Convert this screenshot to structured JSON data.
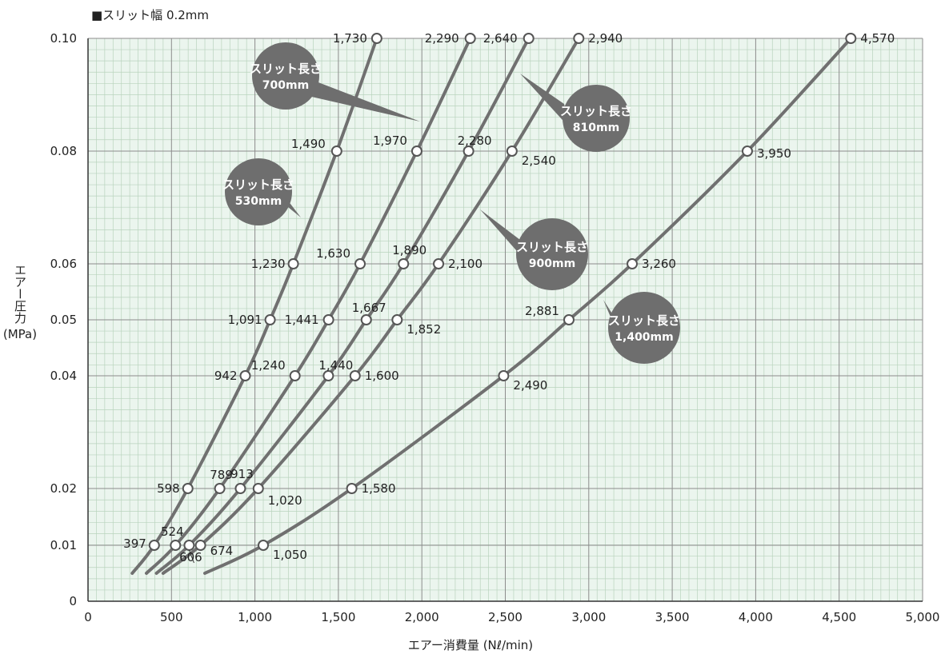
{
  "chart_data": {
    "type": "line",
    "title": "■スリット幅 0.2mm",
    "xlabel": "エアー消費量 (Nℓ/min)",
    "ylabel": "エアー圧力",
    "ylabel_unit": "(MPa)",
    "xlim": [
      0,
      5000
    ],
    "x_ticks": [
      0,
      500,
      1000,
      1500,
      2000,
      2500,
      3000,
      3500,
      4000,
      4500,
      5000
    ],
    "x_tick_labels": [
      "0",
      "500",
      "1,000",
      "1,500",
      "2,000",
      "2,500",
      "3,000",
      "3,500",
      "4,000",
      "4,500",
      "5,000"
    ],
    "y_tick_labels": [
      "0",
      "0.01",
      "0.02",
      "0.04",
      "0.05",
      "0.06",
      "0.08",
      "0.10"
    ],
    "y_tick_values": [
      0,
      0.01,
      0.02,
      0.04,
      0.05,
      0.06,
      0.08,
      0.1
    ],
    "grid": true,
    "colors": {
      "line": "#707070",
      "bubble": "#6e6e6e",
      "grid_minor": "#b9d3bd",
      "grid_major": "#8c8c8c",
      "background": "#ebf5ee"
    },
    "series": [
      {
        "name": "スリット長さ 530mm",
        "points": [
          [
            397,
            0.01,
            "397"
          ],
          [
            598,
            0.02,
            "598"
          ],
          [
            942,
            0.04,
            "942"
          ],
          [
            1091,
            0.05,
            "1,091"
          ],
          [
            1230,
            0.06,
            "1,230"
          ],
          [
            1490,
            0.08,
            "1,490"
          ],
          [
            1730,
            0.1,
            "1,730"
          ]
        ],
        "start": [
          265,
          0.005
        ]
      },
      {
        "name": "スリット長さ 700mm",
        "points": [
          [
            524,
            0.01,
            "524"
          ],
          [
            789,
            0.02,
            "789"
          ],
          [
            1240,
            0.04,
            "1,240"
          ],
          [
            1441,
            0.05,
            "1,441"
          ],
          [
            1630,
            0.06,
            "1,630"
          ],
          [
            1970,
            0.08,
            "1,970"
          ],
          [
            2290,
            0.1,
            "2,290"
          ]
        ],
        "start": [
          350,
          0.005
        ]
      },
      {
        "name": "スリット長さ 810mm",
        "points": [
          [
            606,
            0.01,
            "606"
          ],
          [
            913,
            0.02,
            "913"
          ],
          [
            1440,
            0.04,
            "1,440"
          ],
          [
            1667,
            0.05,
            "1,667"
          ],
          [
            1890,
            0.06,
            "1,890"
          ],
          [
            2280,
            0.08,
            "2,280"
          ],
          [
            2640,
            0.1,
            "2,640"
          ]
        ],
        "start": [
          410,
          0.005
        ]
      },
      {
        "name": "スリット長さ 900mm",
        "points": [
          [
            674,
            0.01,
            "674"
          ],
          [
            1020,
            0.02,
            "1,020"
          ],
          [
            1600,
            0.04,
            "1,600"
          ],
          [
            1852,
            0.05,
            "1,852"
          ],
          [
            2100,
            0.06,
            "2,100"
          ],
          [
            2540,
            0.08,
            "2,540"
          ],
          [
            2940,
            0.1,
            "2,940"
          ]
        ],
        "start": [
          450,
          0.005
        ]
      },
      {
        "name": "スリット長さ 1,400mm",
        "points": [
          [
            1050,
            0.01,
            "1,050"
          ],
          [
            1580,
            0.02,
            "1,580"
          ],
          [
            2490,
            0.04,
            "2,490"
          ],
          [
            2881,
            0.05,
            "2,881"
          ],
          [
            3260,
            0.06,
            "3,260"
          ],
          [
            3950,
            0.08,
            "3,950"
          ],
          [
            4570,
            0.1,
            "4,570"
          ]
        ],
        "start": [
          700,
          0.005
        ]
      }
    ],
    "callouts": [
      {
        "line1": "スリット長さ",
        "line2": "530mm"
      },
      {
        "line1": "スリット長さ",
        "line2": "700mm"
      },
      {
        "line1": "スリット長さ",
        "line2": "810mm"
      },
      {
        "line1": "スリット長さ",
        "line2": "900mm"
      },
      {
        "line1": "スリット長さ",
        "line2": "1,400mm"
      }
    ]
  }
}
